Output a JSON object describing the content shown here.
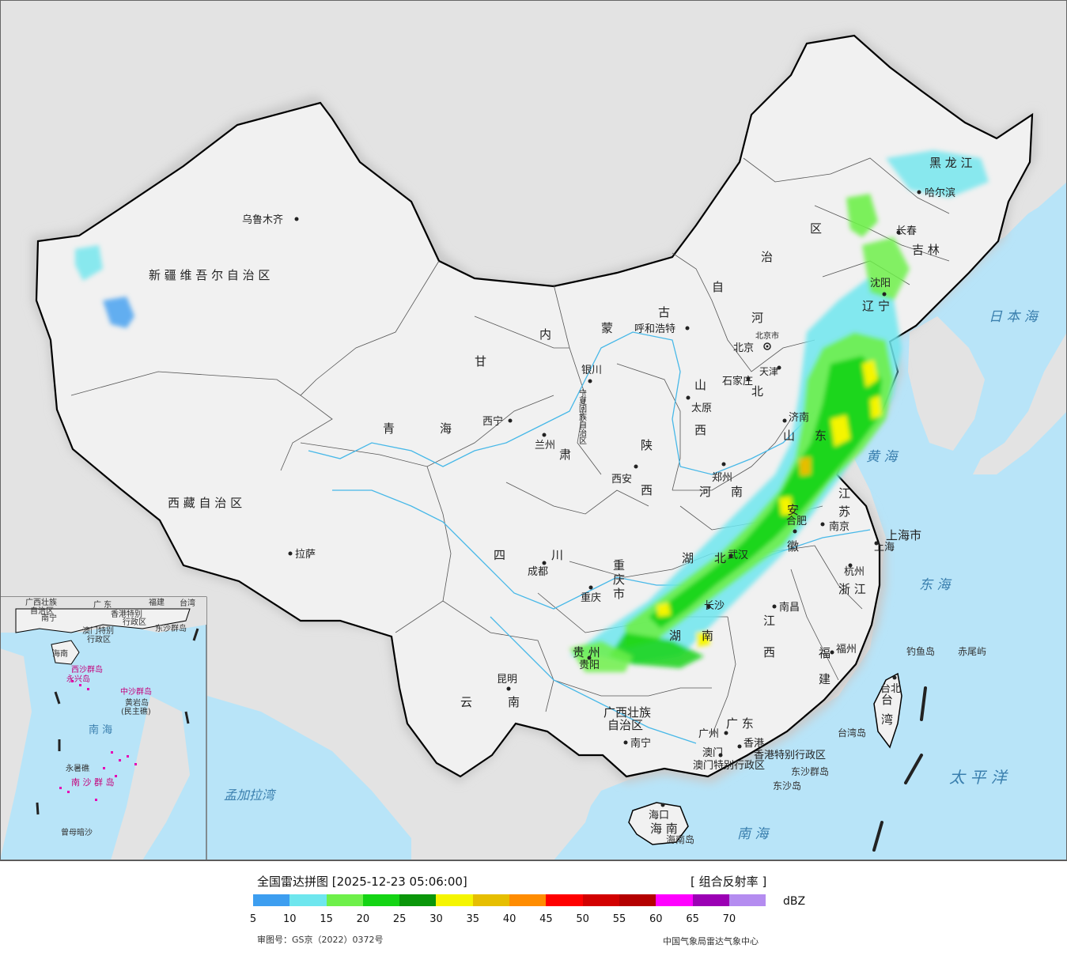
{
  "legend": {
    "title": "全国雷达拼图 [2025-12-23 05:06:00]",
    "product": "[ 组合反射率 ]",
    "unit": "dBZ",
    "review_no": "审图号：GS京（2022）0372号",
    "credit": "中国气象局雷达气象中心",
    "ticks": [
      "5",
      "10",
      "15",
      "20",
      "25",
      "30",
      "35",
      "40",
      "45",
      "50",
      "55",
      "60",
      "65",
      "70"
    ],
    "colors": [
      "#3d9ef0",
      "#6ee6ee",
      "#6ef04a",
      "#14d414",
      "#0a960a",
      "#f5f500",
      "#e6be00",
      "#ff8c00",
      "#ff0000",
      "#d20000",
      "#b40000",
      "#ff00ff",
      "#9b00b4",
      "#b48cf0"
    ]
  },
  "colors": {
    "sea": "#b8e4f8",
    "land": "#f1f1f1",
    "outside": "#e3e3e3",
    "border": "#000000",
    "river": "#47b8e8"
  },
  "regions": {
    "xinjiang": "新 疆 维 吾 尔 自 治 区",
    "xizang": "西 藏 自 治 区",
    "qinghai_a": "青",
    "qinghai_b": "海",
    "gansu_a": "甘",
    "gansu_b": "肃",
    "neimenggu_a": "内",
    "neimenggu_b": "蒙",
    "neimenggu_c": "古",
    "neimenggu_d": "自",
    "neimenggu_e": "治",
    "neimenggu_f": "区",
    "ningxia": "宁夏回族自治区",
    "sichuan_a": "四",
    "sichuan_b": "川",
    "yunnan_a": "云",
    "yunnan_b": "南",
    "heilongjiang": "黑 龙 江",
    "jilin": "吉 林",
    "liaoning_a": "辽",
    "liaoning_b": "宁",
    "hebei_a": "河",
    "hebei_b": "北",
    "shanxi_a": "山",
    "shanxi_b": "西",
    "shaanxi_a": "陕",
    "shaanxi_b": "西",
    "shandong_a": "山",
    "shandong_b": "东",
    "henan_a": "河",
    "henan_b": "南",
    "jiangsu_a": "江",
    "jiangsu_b": "苏",
    "anhui_a": "安",
    "anhui_b": "徽",
    "hubei_a": "湖",
    "hubei_b": "北",
    "hunan_a": "湖",
    "hunan_b": "南",
    "jiangxi_a": "江",
    "jiangxi_b": "西",
    "zhejiang": "浙 江",
    "fujian_a": "福",
    "fujian_b": "建",
    "guizhou": "贵 州",
    "guangxi_a": "广西壮族",
    "guangxi_b": "自治区",
    "guangdong": "广 东",
    "hainan": "海 南",
    "taiwan_a": "台",
    "taiwan_b": "湾",
    "chongqing_a": "重",
    "chongqing_b": "庆",
    "chongqing_c": "市",
    "shanghai": "上海市",
    "tianjin": "天津",
    "beijing": "北京市",
    "hk": "香港特别行政区",
    "macau": "澳门特别行政区"
  },
  "cities": [
    {
      "name": "乌鲁木齐"
    },
    {
      "name": "拉萨"
    },
    {
      "name": "西宁"
    },
    {
      "name": "兰州"
    },
    {
      "name": "银川"
    },
    {
      "name": "呼和浩特"
    },
    {
      "name": "西安"
    },
    {
      "name": "成都"
    },
    {
      "name": "重庆"
    },
    {
      "name": "贵阳"
    },
    {
      "name": "昆明"
    },
    {
      "name": "南宁"
    },
    {
      "name": "广州"
    },
    {
      "name": "澳门"
    },
    {
      "name": "香港"
    },
    {
      "name": "海口"
    },
    {
      "name": "长沙"
    },
    {
      "name": "武汉"
    },
    {
      "name": "郑州"
    },
    {
      "name": "太原"
    },
    {
      "name": "石家庄"
    },
    {
      "name": "北京"
    },
    {
      "name": "天津"
    },
    {
      "name": "济南"
    },
    {
      "name": "南京"
    },
    {
      "name": "合肥"
    },
    {
      "name": "上海"
    },
    {
      "name": "杭州"
    },
    {
      "name": "南昌"
    },
    {
      "name": "福州"
    },
    {
      "name": "台北"
    },
    {
      "name": "沈阳"
    },
    {
      "name": "长春"
    },
    {
      "name": "哈尔滨"
    }
  ],
  "seas": {
    "japan_sea": "日 本 海",
    "yellow_sea": "黄 海",
    "east_sea": "东 海",
    "pacific": "太 平 洋",
    "south_sea": "南 海",
    "bengal": "孟加拉湾"
  },
  "islands": {
    "diaoyu": "钓鱼岛",
    "chiwei": "赤尾屿",
    "taiwan_island": "台湾岛",
    "hainan_island": "海南岛",
    "dongsha_islands": "东沙群岛",
    "dongsha_island": "东沙岛"
  },
  "inset": {
    "guangdong": "广 东",
    "guangxi_a": "广西壮族",
    "guangxi_b": "自治区",
    "nanning": "南宁",
    "hk": "香港特别",
    "hk2": "行政区",
    "macau": "澳门特别",
    "macau2": "行政区",
    "fujian": "福建",
    "taiwan": "台湾",
    "dongsha": "东沙群岛",
    "hainan": "海南",
    "xisha": "西沙群岛",
    "yongxing": "永兴岛",
    "zhongsha": "中沙群岛",
    "huangyan": "黄岩岛",
    "minzhu": "(民主礁)",
    "south_sea": "南 海",
    "nansha": "南 沙 群 岛",
    "yongshu": "永暑礁",
    "zengmu": "曾母暗沙"
  }
}
